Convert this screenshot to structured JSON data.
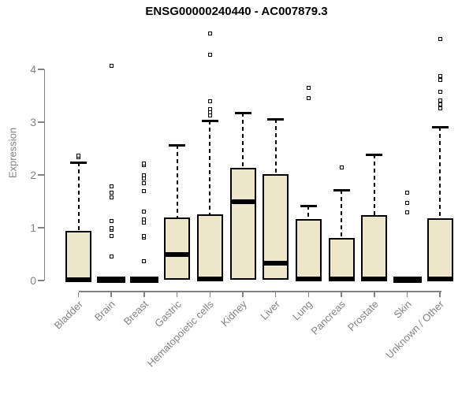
{
  "chart_data": {
    "type": "boxplot",
    "title": "ENSG00000240440 - AC007879.3",
    "xlabel": "",
    "ylabel": "Expression",
    "yticks": [
      0,
      1,
      2,
      3,
      4
    ],
    "ylim": [
      0,
      4.8
    ],
    "grid": false,
    "whisker_style": "dashed",
    "categories": [
      "Bladder",
      "Brain",
      "Breast",
      "Gastric",
      "Hematopoietic cells",
      "Kidney",
      "Liver",
      "Lung",
      "Pancreas",
      "Prostate",
      "Skin",
      "Unknown / Other"
    ],
    "boxes": [
      {
        "category": "Bladder",
        "q1": 0,
        "median": 0.02,
        "q3": 0.94,
        "whisker_low": 0,
        "whisker_high": 2.24,
        "outliers": [
          2.33,
          2.37
        ]
      },
      {
        "category": "Brain",
        "q1": 0,
        "median": 0.01,
        "q3": 0.02,
        "whisker_low": 0,
        "whisker_high": 0.02,
        "outliers": [
          0.46,
          0.84,
          0.97,
          1.0,
          1.13,
          1.57,
          1.67,
          1.79,
          4.07
        ]
      },
      {
        "category": "Breast",
        "q1": 0,
        "median": 0.01,
        "q3": 0.02,
        "whisker_low": 0,
        "whisker_high": 0.02,
        "outliers": [
          0.36,
          0.81,
          0.84,
          1.09,
          1.16,
          1.31,
          1.69,
          1.84,
          1.94,
          2.0,
          2.18,
          2.21
        ]
      },
      {
        "category": "Gastric",
        "q1": 0.02,
        "median": 0.5,
        "q3": 1.19,
        "whisker_low": 0.02,
        "whisker_high": 2.57,
        "outliers": []
      },
      {
        "category": "Hematopoietic cells",
        "q1": 0,
        "median": 0.03,
        "q3": 1.26,
        "whisker_low": 0,
        "whisker_high": 3.03,
        "outliers": [
          3.13,
          3.19,
          3.25,
          3.4,
          4.28,
          4.68
        ]
      },
      {
        "category": "Kidney",
        "q1": 0.02,
        "median": 1.5,
        "q3": 2.13,
        "whisker_low": 0.02,
        "whisker_high": 3.18,
        "outliers": []
      },
      {
        "category": "Liver",
        "q1": 0.02,
        "median": 0.33,
        "q3": 2.01,
        "whisker_low": 0.02,
        "whisker_high": 3.06,
        "outliers": []
      },
      {
        "category": "Lung",
        "q1": 0,
        "median": 0.03,
        "q3": 1.17,
        "whisker_low": 0,
        "whisker_high": 1.42,
        "outliers": [
          3.46,
          3.65
        ]
      },
      {
        "category": "Pancreas",
        "q1": 0,
        "median": 0.03,
        "q3": 0.8,
        "whisker_low": 0,
        "whisker_high": 1.71,
        "outliers": [
          2.14
        ]
      },
      {
        "category": "Prostate",
        "q1": 0,
        "median": 0.03,
        "q3": 1.24,
        "whisker_low": 0,
        "whisker_high": 2.39,
        "outliers": []
      },
      {
        "category": "Skin",
        "q1": 0,
        "median": 0.01,
        "q3": 0.02,
        "whisker_low": 0,
        "whisker_high": 0.02,
        "outliers": [
          1.29,
          1.47,
          1.66
        ]
      },
      {
        "category": "Unknown / Other",
        "q1": 0,
        "median": 0.03,
        "q3": 1.18,
        "whisker_low": 0,
        "whisker_high": 2.91,
        "outliers": [
          3.26,
          3.33,
          3.41,
          3.58,
          3.8,
          3.87,
          4.58
        ]
      }
    ],
    "colors": {
      "box_fill": "#ede6ca",
      "box_border": "#000000",
      "median": "#000000",
      "whisker": "#000000",
      "outlier_fill": "#ffffff",
      "axis": "#828282",
      "tick_label": "#828282",
      "title": "#000000",
      "background": "#ffffff"
    }
  }
}
